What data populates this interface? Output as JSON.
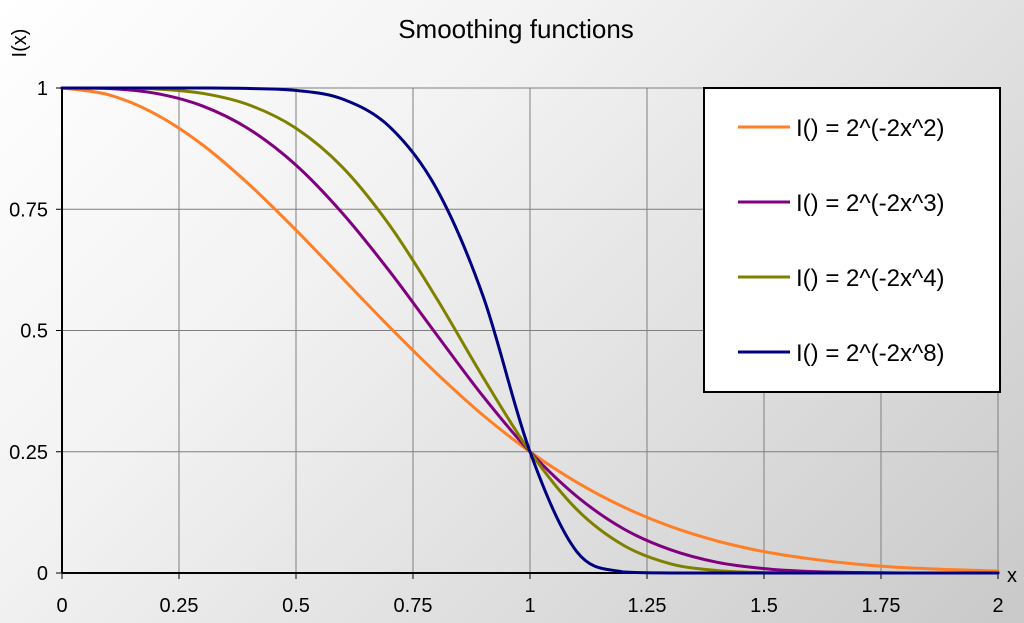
{
  "chart_data": {
    "type": "line",
    "title": "Smoothing functions",
    "xlabel": "x",
    "ylabel": "I(x)",
    "xlim": [
      0,
      2
    ],
    "ylim": [
      0,
      1
    ],
    "x_ticks": [
      "0",
      "0.25",
      "0.5",
      "0.75",
      "1",
      "1.25",
      "1.5",
      "1.75",
      "2"
    ],
    "y_ticks": [
      "0",
      "0.25",
      "0.5",
      "0.75",
      "1"
    ],
    "grid": true,
    "legend_position": "top-right",
    "x": [
      0,
      0.1,
      0.2,
      0.3,
      0.4,
      0.5,
      0.6,
      0.7,
      0.8,
      0.9,
      1.0,
      1.1,
      1.2,
      1.3,
      1.4,
      1.5,
      1.6,
      1.7,
      1.8,
      1.9,
      2.0
    ],
    "series": [
      {
        "name": "I() = 2^(-2x^2)",
        "color": "#ff7f27",
        "values": [
          1.0,
          0.986,
          0.946,
          0.883,
          0.801,
          0.707,
          0.607,
          0.507,
          0.412,
          0.325,
          0.25,
          0.187,
          0.136,
          0.096,
          0.066,
          0.044,
          0.029,
          0.018,
          0.011,
          0.007,
          0.004
        ]
      },
      {
        "name": "I() = 2^(-2x^3)",
        "color": "#800080",
        "values": [
          1.0,
          0.999,
          0.989,
          0.963,
          0.915,
          0.841,
          0.741,
          0.622,
          0.492,
          0.364,
          0.25,
          0.158,
          0.091,
          0.048,
          0.022,
          0.009,
          0.003,
          0.001,
          0.0,
          0.0,
          0.0
        ]
      },
      {
        "name": "I() = 2^(-2x^4)",
        "color": "#808000",
        "values": [
          1.0,
          1.0,
          0.998,
          0.989,
          0.965,
          0.917,
          0.836,
          0.717,
          0.567,
          0.403,
          0.25,
          0.131,
          0.057,
          0.019,
          0.005,
          0.001,
          0.0,
          0.0,
          0.0,
          0.0,
          0.0
        ]
      },
      {
        "name": "I() = 2^(-2x^8)",
        "color": "#000080",
        "values": [
          1.0,
          1.0,
          1.0,
          1.0,
          0.999,
          0.995,
          0.977,
          0.92,
          0.793,
          0.57,
          0.25,
          0.044,
          0.002,
          0.0,
          0.0,
          0.0,
          0.0,
          0.0,
          0.0,
          0.0,
          0.0
        ]
      }
    ]
  }
}
